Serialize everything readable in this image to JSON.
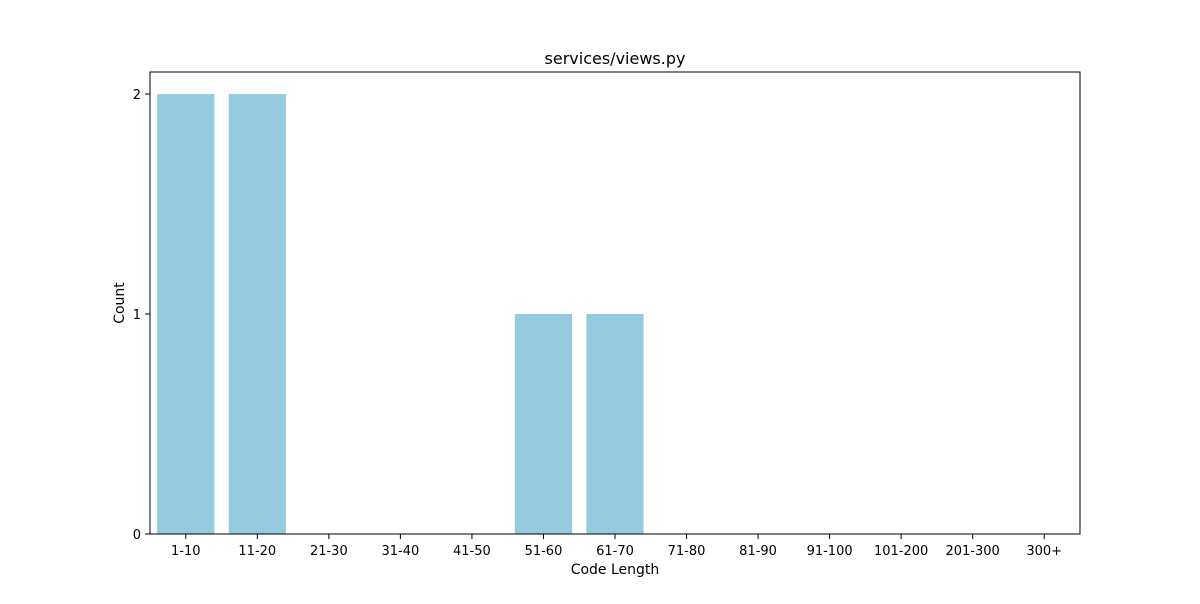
{
  "chart_data": {
    "type": "bar",
    "title": "services/views.py",
    "xlabel": "Code Length",
    "ylabel": "Count",
    "categories": [
      "1-10",
      "11-20",
      "21-30",
      "31-40",
      "41-50",
      "51-60",
      "61-70",
      "71-80",
      "81-90",
      "91-100",
      "101-200",
      "201-300",
      "300+"
    ],
    "values": [
      2,
      2,
      0,
      0,
      0,
      1,
      1,
      0,
      0,
      0,
      0,
      0,
      0
    ],
    "yticks": [
      0,
      1,
      2
    ],
    "ylim": [
      0,
      2.1
    ],
    "grid": false,
    "legend": false,
    "colors": {
      "bar": "#96cade"
    }
  }
}
